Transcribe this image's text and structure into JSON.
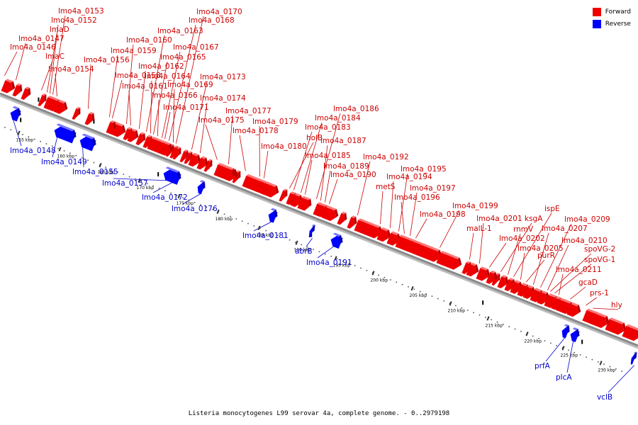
{
  "colors": {
    "forward": "#ee0000",
    "reverse": "#0000ff",
    "forward_label": "#cc0000",
    "reverse_label": "#0000cc",
    "backbone": "#888888",
    "tick": "#333333"
  },
  "legend": {
    "forward": "Forward",
    "reverse": "Reverse"
  },
  "caption": "Listeria monocytogenes L99 serovar 4a, complete genome. - 0..2979198",
  "scale_ticks": [
    "155 kbp",
    "160 kbp",
    "165 kbp",
    "170 kbp",
    "175 kbp",
    "180 kbp",
    "185 kbp",
    "190 kbp",
    "195 kbp",
    "200 kbp",
    "205 kbp",
    "210 kbp",
    "215 kbp",
    "220 kbp",
    "225 kbp",
    "230 kbp"
  ],
  "forward_genes": [
    "lmo4a_0146",
    "lmo4a_0147",
    "lmaC",
    "lmaD",
    "lmo4a_0152",
    "lmo4a_0153",
    "lmo4a_0154",
    "lmo4a_0156",
    "lmo4a_0158",
    "lmo4a_0159",
    "lmo4a_0160",
    "lmo4a_0161",
    "lmo4a_0162",
    "lmo4a_0163",
    "lmo4a_0164",
    "lmo4a_0165",
    "lmo4a_0166",
    "lmo4a_0167",
    "lmo4a_0168",
    "lmo4a_0169",
    "lmo4a_0170",
    "lmo4a_0171",
    "lmo4a_0173",
    "lmo4a_0174",
    "lmo4a_0175",
    "lmo4a_0177",
    "lmo4a_0178",
    "lmo4a_0179",
    "lmo4a_0180",
    "holB",
    "lmo4a_0183",
    "lmo4a_0184",
    "lmo4a_0185",
    "lmo4a_0186",
    "lmo4a_0187",
    "lmo4a_0189",
    "lmo4a_0190",
    "lmo4a_0192",
    "metS",
    "lmo4a_0194",
    "lmo4a_0195",
    "lmo4a_0196",
    "lmo4a_0197",
    "lmo4a_0198",
    "lmo4a_0199",
    "malL-1",
    "lmo4a_0201",
    "lmo4a_0202",
    "ksgA",
    "rnmV",
    "ispE",
    "lmo4a_0205",
    "purR",
    "lmo4a_0207",
    "lmo4a_0209",
    "lmo4a_0210",
    "spoVG-2",
    "spoVG-1",
    "lmo4a_0211",
    "gcaD",
    "prs-1",
    "hly"
  ],
  "reverse_genes": [
    "lmo4a_0148",
    "lmo4a_0149",
    "lmo4a_0155",
    "lmo4a_0157",
    "lmo4a_0172",
    "lmo4a_0176",
    "lmo4a_0181",
    "abrB",
    "lmo4a_0191",
    "prfA",
    "plcA",
    "vclB"
  ]
}
